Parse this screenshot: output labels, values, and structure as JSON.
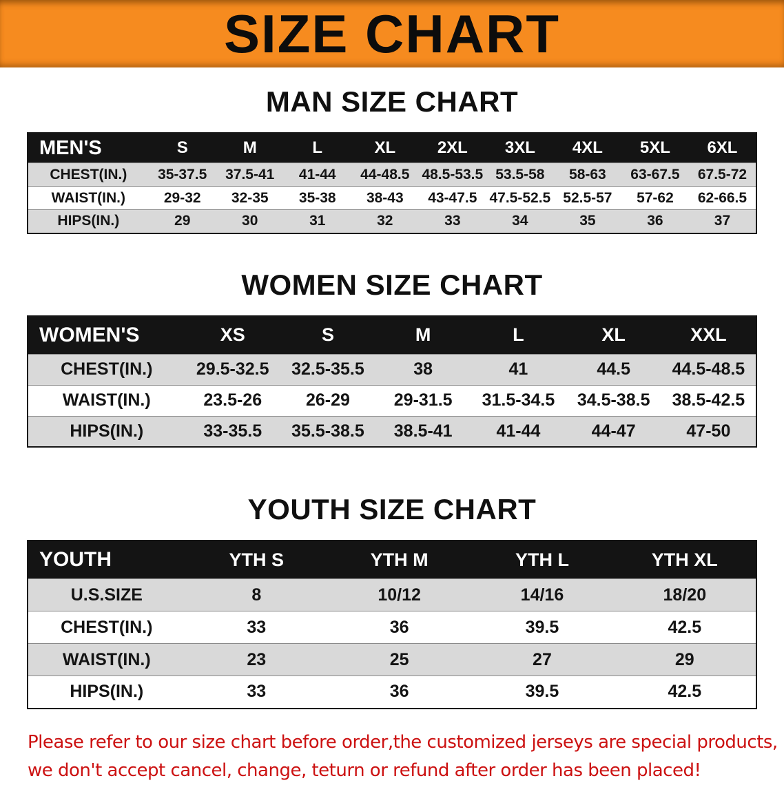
{
  "banner": {
    "title": "SIZE CHART"
  },
  "colors": {
    "banner_orange": "#f68b1f",
    "table_header_black": "#141414",
    "row_stripe_gray": "#d9d9d9",
    "note_red": "#cc1111"
  },
  "sections": [
    {
      "id": "men",
      "title": "MAN SIZE CHART",
      "header": [
        "MEN'S",
        "S",
        "M",
        "L",
        "XL",
        "2XL",
        "3XL",
        "4XL",
        "5XL",
        "6XL"
      ],
      "rows": [
        [
          "CHEST(IN.)",
          "35-37.5",
          "37.5-41",
          "41-44",
          "44-48.5",
          "48.5-53.5",
          "53.5-58",
          "58-63",
          "63-67.5",
          "67.5-72"
        ],
        [
          "WAIST(IN.)",
          "29-32",
          "32-35",
          "35-38",
          "38-43",
          "43-47.5",
          "47.5-52.5",
          "52.5-57",
          "57-62",
          "62-66.5"
        ],
        [
          "HIPS(IN.)",
          "29",
          "30",
          "31",
          "32",
          "33",
          "34",
          "35",
          "36",
          "37"
        ]
      ]
    },
    {
      "id": "women",
      "title": "WOMEN SIZE CHART",
      "header": [
        "WOMEN'S",
        "XS",
        "S",
        "M",
        "L",
        "XL",
        "XXL"
      ],
      "rows": [
        [
          "CHEST(IN.)",
          "29.5-32.5",
          "32.5-35.5",
          "38",
          "41",
          "44.5",
          "44.5-48.5"
        ],
        [
          "WAIST(IN.)",
          "23.5-26",
          "26-29",
          "29-31.5",
          "31.5-34.5",
          "34.5-38.5",
          "38.5-42.5"
        ],
        [
          "HIPS(IN.)",
          "33-35.5",
          "35.5-38.5",
          "38.5-41",
          "41-44",
          "44-47",
          "47-50"
        ]
      ]
    },
    {
      "id": "youth",
      "title": "YOUTH SIZE CHART",
      "header": [
        "YOUTH",
        "YTH S",
        "YTH M",
        "YTH L",
        "YTH XL"
      ],
      "rows": [
        [
          "U.S.SIZE",
          "8",
          "10/12",
          "14/16",
          "18/20"
        ],
        [
          "CHEST(IN.)",
          "33",
          "36",
          "39.5",
          "42.5"
        ],
        [
          "WAIST(IN.)",
          "23",
          "25",
          "27",
          "29"
        ],
        [
          "HIPS(IN.)",
          "33",
          "36",
          "39.5",
          "42.5"
        ]
      ]
    }
  ],
  "note": {
    "line1": "Please refer to our size chart before order,the customized jerseys are special products,",
    "line2": "we don't accept cancel, change, teturn or refund after order has been placed!"
  }
}
